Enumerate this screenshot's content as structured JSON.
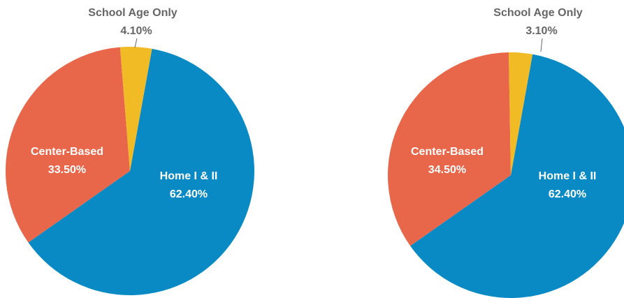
{
  "chart_data": [
    {
      "type": "pie",
      "categories": [
        "Home I & II",
        "Center-Based",
        "School Age Only"
      ],
      "values": [
        62.4,
        33.5,
        4.1
      ],
      "value_labels": [
        "62.40%",
        "33.50%",
        "4.10%"
      ],
      "colors": [
        "#0a8ac4",
        "#e8674a",
        "#f0bb24"
      ]
    },
    {
      "type": "pie",
      "categories": [
        "Home I & II",
        "Center-Based",
        "School Age Only"
      ],
      "values": [
        62.4,
        34.5,
        3.1
      ],
      "value_labels": [
        "62.40%",
        "34.50%",
        "3.10%"
      ],
      "colors": [
        "#0a8ac4",
        "#e8674a",
        "#f0bb24"
      ]
    }
  ]
}
